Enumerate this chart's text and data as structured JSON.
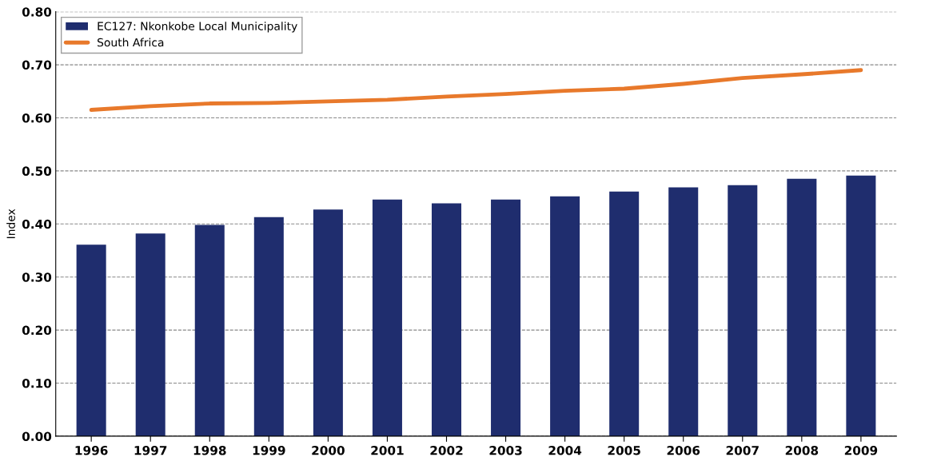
{
  "chart_data": {
    "type": "bar",
    "ylabel": "Index",
    "categories": [
      "1996",
      "1997",
      "1998",
      "1999",
      "2000",
      "2001",
      "2002",
      "2003",
      "2004",
      "2005",
      "2006",
      "2007",
      "2008",
      "2009"
    ],
    "series": [
      {
        "name": "EC127: Nkonkobe Local Municipality",
        "color": "#1f2d6e",
        "values": [
          0.361,
          0.382,
          0.398,
          0.413,
          0.427,
          0.446,
          0.439,
          0.446,
          0.452,
          0.461,
          0.469,
          0.473,
          0.485,
          0.491
        ]
      },
      {
        "name": "South Africa",
        "type": "line",
        "color": "#e8792b",
        "values": [
          0.615,
          0.622,
          0.627,
          0.628,
          0.631,
          0.634,
          0.64,
          0.645,
          0.651,
          0.655,
          0.664,
          0.675,
          0.682,
          0.69
        ]
      }
    ],
    "ylim": [
      0,
      0.8
    ],
    "yticks": [
      {
        "value": 0,
        "label": "0.00"
      },
      {
        "value": 0.1,
        "label": "0.10"
      },
      {
        "value": 0.2,
        "label": "0.20"
      },
      {
        "value": 0.3,
        "label": "0.30"
      },
      {
        "value": 0.4,
        "label": "0.40"
      },
      {
        "value": 0.5,
        "label": "0.50"
      },
      {
        "value": 0.6,
        "label": "0.60"
      },
      {
        "value": 0.7,
        "label": "0.70"
      },
      {
        "value": 0.8,
        "label": "0.80"
      }
    ],
    "grid": "y",
    "legend": "upper left",
    "line_style": "solid",
    "marker": "none"
  }
}
